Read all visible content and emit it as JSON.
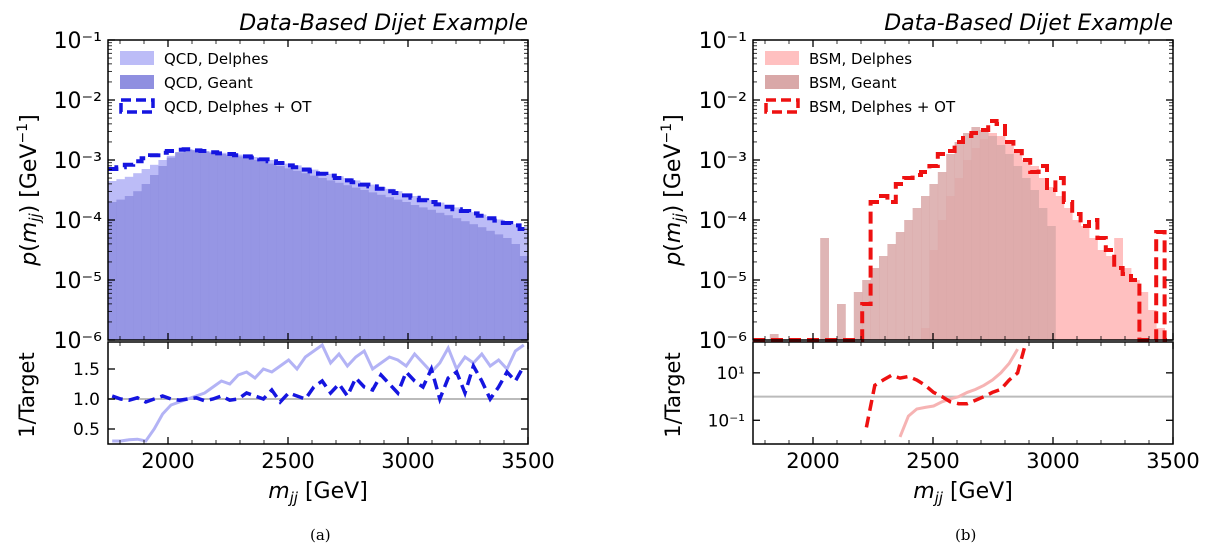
{
  "figure": {
    "captions": [
      "(a)",
      "(b)"
    ]
  },
  "chart_data": [
    {
      "type": "histogram",
      "title": "Data-Based Dijet Example",
      "xlabel": "m_jj [GeV]",
      "ylabel": "p(m_jj) [GeV^-1]",
      "ratio_ylabel": "1/Target",
      "xlim": [
        1750,
        3500
      ],
      "ylim": [
        1e-06,
        0.1
      ],
      "y_scale": "log",
      "x_ticks": [
        2000,
        2500,
        3000,
        3500
      ],
      "y_ticks": [
        -6,
        -5,
        -4,
        -3,
        -2,
        -1
      ],
      "legend_position": "top-left",
      "bin_edges_start": 1750,
      "bin_width": 35,
      "series": [
        {
          "name": "QCD, Delphes",
          "style": "filled",
          "color": "#bcbcf7",
          "log10_values": [
            -3.35,
            -3.32,
            -3.28,
            -3.22,
            -3.15,
            -3.08,
            -3.0,
            -2.93,
            -2.87,
            -2.82,
            -2.83,
            -2.85,
            -2.86,
            -2.88,
            -2.89,
            -2.91,
            -2.93,
            -2.95,
            -2.97,
            -3.0,
            -3.03,
            -3.06,
            -3.09,
            -3.12,
            -3.16,
            -3.2,
            -3.23,
            -3.27,
            -3.3,
            -3.34,
            -3.38,
            -3.41,
            -3.45,
            -3.48,
            -3.52,
            -3.56,
            -3.6,
            -3.63,
            -3.67,
            -3.71,
            -3.75,
            -3.79,
            -3.83,
            -3.87,
            -3.91,
            -3.95,
            -3.99,
            -4.03,
            -4.07,
            -4.12
          ]
        },
        {
          "name": "QCD, Geant",
          "style": "filled",
          "color": "#8f8fe0",
          "log10_values": [
            -3.7,
            -3.66,
            -3.6,
            -3.52,
            -3.4,
            -3.25,
            -3.1,
            -2.96,
            -2.87,
            -2.83,
            -2.84,
            -2.86,
            -2.88,
            -2.9,
            -2.92,
            -2.94,
            -2.97,
            -3.0,
            -3.03,
            -3.06,
            -3.1,
            -3.14,
            -3.18,
            -3.22,
            -3.26,
            -3.3,
            -3.34,
            -3.38,
            -3.42,
            -3.46,
            -3.5,
            -3.54,
            -3.58,
            -3.62,
            -3.66,
            -3.7,
            -3.75,
            -3.79,
            -3.83,
            -3.88,
            -3.92,
            -3.97,
            -4.02,
            -4.07,
            -4.12,
            -4.18,
            -4.24,
            -4.3,
            -4.4,
            -4.6
          ]
        },
        {
          "name": "QCD, Delphes + OT",
          "style": "dashed-step",
          "color": "#1515e0",
          "log10_values": [
            -3.15,
            -3.12,
            -3.08,
            -3.02,
            -2.97,
            -2.92,
            -2.88,
            -2.85,
            -2.83,
            -2.82,
            -2.84,
            -2.85,
            -2.87,
            -2.89,
            -2.9,
            -2.92,
            -2.94,
            -2.96,
            -2.99,
            -3.02,
            -3.05,
            -3.09,
            -3.12,
            -3.16,
            -3.19,
            -3.23,
            -3.26,
            -3.3,
            -3.34,
            -3.37,
            -3.41,
            -3.44,
            -3.48,
            -3.52,
            -3.55,
            -3.59,
            -3.63,
            -3.67,
            -3.7,
            -3.74,
            -3.78,
            -3.82,
            -3.85,
            -3.89,
            -3.93,
            -3.97,
            -4.01,
            -4.05,
            -4.09,
            -4.15
          ]
        }
      ],
      "ratio_panel": {
        "scale": "linear",
        "ylim": [
          0.25,
          1.95
        ],
        "y_ticks": [
          0.5,
          1.0,
          1.5
        ],
        "y_tick_labels": [
          "0.5",
          "1.0",
          "1.5"
        ],
        "reference": 1.0,
        "series": [
          {
            "name": "QCD, Delphes ratio",
            "style": "solid",
            "color": "#b3b3f5",
            "values": [
              0.3,
              0.3,
              0.32,
              0.33,
              0.3,
              0.5,
              0.75,
              0.9,
              0.95,
              1.0,
              1.05,
              1.1,
              1.2,
              1.3,
              1.25,
              1.4,
              1.45,
              1.35,
              1.5,
              1.45,
              1.55,
              1.65,
              1.5,
              1.7,
              1.8,
              1.9,
              1.6,
              1.75,
              1.55,
              1.7,
              1.8,
              1.5,
              1.6,
              1.7,
              1.65,
              1.55,
              1.75,
              1.6,
              1.45,
              1.6,
              1.85,
              1.5,
              1.7,
              1.6,
              1.75,
              1.55,
              1.65,
              1.5,
              1.8,
              1.9
            ]
          },
          {
            "name": "QCD, Delphes + OT ratio",
            "style": "dashed",
            "color": "#1515e0",
            "values": [
              1.05,
              1.0,
              0.98,
              1.02,
              0.95,
              1.0,
              1.05,
              1.0,
              0.98,
              1.0,
              1.02,
              0.97,
              1.0,
              1.05,
              0.98,
              1.0,
              1.1,
              1.05,
              1.0,
              1.15,
              0.95,
              1.1,
              1.05,
              1.0,
              1.2,
              1.3,
              1.1,
              1.25,
              1.05,
              1.35,
              1.2,
              1.15,
              1.4,
              1.25,
              1.1,
              1.45,
              1.3,
              1.2,
              1.5,
              1.0,
              1.35,
              1.45,
              1.1,
              1.55,
              1.3,
              1.0,
              1.2,
              1.45,
              1.3,
              1.55
            ]
          }
        ]
      }
    },
    {
      "type": "histogram",
      "title": "Data-Based Dijet Example",
      "xlabel": "m_jj [GeV]",
      "ylabel": "p(m_jj) [GeV^-1]",
      "ratio_ylabel": "1/Target",
      "xlim": [
        1750,
        3500
      ],
      "ylim": [
        1e-06,
        0.1
      ],
      "y_scale": "log",
      "x_ticks": [
        2000,
        2500,
        3000,
        3500
      ],
      "y_ticks": [
        -6,
        -5,
        -4,
        -3,
        -2,
        -1
      ],
      "legend_position": "top-left",
      "bin_edges_start": 1750,
      "bin_width": 35,
      "series": [
        {
          "name": "BSM, Delphes",
          "style": "filled",
          "color": "#ffc0c0",
          "log10_values": [
            -7,
            -7,
            -7,
            -7,
            -7,
            -7,
            -7,
            -7,
            -7,
            -7,
            -7,
            -7,
            -7,
            -7,
            -7,
            -7,
            -7,
            -7,
            -7,
            -7,
            -5.8,
            -4.5,
            -4.0,
            -3.6,
            -3.3,
            -3.0,
            -2.8,
            -2.65,
            -2.55,
            -2.6,
            -2.7,
            -2.85,
            -3.0,
            -3.1,
            -3.3,
            -3.45,
            -3.6,
            -3.8,
            -4.0,
            -4.1,
            -4.3,
            -4.5,
            -4.6,
            -4.3,
            -4.8,
            -5.0,
            -5.2,
            -5.5,
            -5.8,
            -6.1
          ]
        },
        {
          "name": "BSM, Geant",
          "style": "filled",
          "color": "#d9a8a8",
          "log10_values": [
            -7,
            -7,
            -5.9,
            -7,
            -7,
            -7,
            -7,
            -6.0,
            -4.3,
            -6.2,
            -5.4,
            -7,
            -5.2,
            -5.0,
            -4.8,
            -4.6,
            -4.4,
            -4.2,
            -4.0,
            -3.8,
            -3.6,
            -3.4,
            -3.2,
            -2.9,
            -2.7,
            -2.55,
            -2.45,
            -2.5,
            -2.6,
            -2.75,
            -2.9,
            -3.1,
            -3.3,
            -3.5,
            -3.8,
            -4.1,
            -7,
            -7,
            -7,
            -7,
            -7,
            -7,
            -7,
            -7,
            -7,
            -7,
            -7,
            -7,
            -7,
            -7
          ]
        },
        {
          "name": "BSM, Delphes + OT",
          "style": "dashed-step",
          "color": "#ee1111",
          "log10_values": [
            -7,
            -7,
            -7,
            -7,
            -7,
            -7,
            -7,
            -7,
            -7,
            -6.0,
            -7,
            -7,
            -7,
            -5.4,
            -3.7,
            -3.6,
            -3.7,
            -3.4,
            -3.3,
            -3.25,
            -3.2,
            -3.1,
            -2.9,
            -2.85,
            -2.7,
            -2.6,
            -2.55,
            -2.5,
            -2.35,
            -2.4,
            -2.7,
            -2.85,
            -3.0,
            -3.2,
            -3.1,
            -3.5,
            -3.3,
            -3.7,
            -3.9,
            -4.1,
            -4.0,
            -4.3,
            -4.5,
            -4.8,
            -4.9,
            -5.0,
            -6.0,
            -7,
            -4.2,
            -7
          ]
        }
      ],
      "ratio_panel": {
        "scale": "log",
        "ylim": [
          0.01,
          200
        ],
        "y_ticks": [
          0.1,
          10
        ],
        "y_tick_labels": [
          "10⁻¹",
          "10¹"
        ],
        "reference": 1.0,
        "series": [
          {
            "name": "BSM, Delphes ratio",
            "style": "solid",
            "color": "#f6b3b3",
            "values": [
              null,
              null,
              null,
              null,
              null,
              null,
              null,
              null,
              null,
              null,
              null,
              null,
              null,
              null,
              null,
              null,
              null,
              0.02,
              0.15,
              0.3,
              0.35,
              0.4,
              0.6,
              0.8,
              1.0,
              1.5,
              2.0,
              3.0,
              5.0,
              10.0,
              25.0,
              100.0,
              null,
              null,
              null,
              null,
              null,
              null,
              null,
              null,
              null,
              null,
              null,
              null,
              null,
              null,
              null,
              null,
              null,
              null
            ]
          },
          {
            "name": "BSM, Delphes + OT ratio",
            "style": "dashed",
            "color": "#ee1111",
            "values": [
              null,
              null,
              null,
              null,
              null,
              null,
              null,
              null,
              null,
              0.03,
              null,
              null,
              null,
              0.05,
              3.0,
              5.0,
              8.0,
              6.0,
              7.0,
              5.0,
              3.0,
              1.5,
              1.0,
              0.6,
              0.5,
              0.5,
              0.7,
              1.0,
              1.5,
              2.0,
              5.0,
              10.0,
              200.0,
              null,
              null,
              null,
              null,
              null,
              null,
              null,
              null,
              null,
              null,
              null,
              null,
              null,
              null,
              null,
              null,
              null
            ]
          }
        ]
      }
    }
  ]
}
